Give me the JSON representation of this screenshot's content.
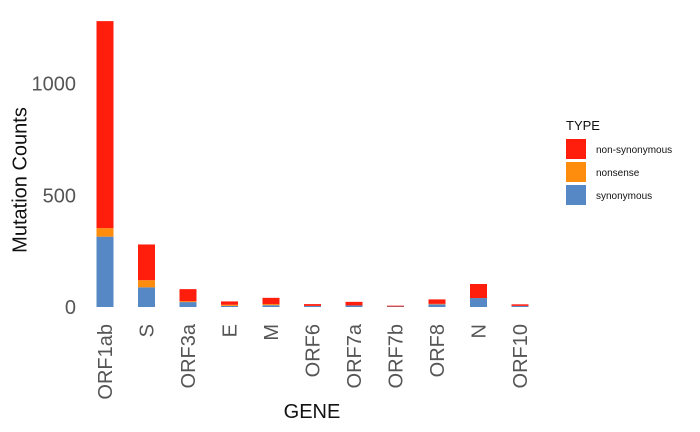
{
  "chart_data": {
    "type": "bar",
    "stacked": true,
    "title": "",
    "xlabel": "GENE",
    "ylabel": "Mutation Counts",
    "ylim": [
      0,
      1285
    ],
    "yticks": [
      0,
      500,
      1000
    ],
    "grid": false,
    "legend_title": "TYPE",
    "legend_position": "right",
    "categories": [
      "ORF1ab",
      "S",
      "ORF3a",
      "E",
      "M",
      "ORF6",
      "ORF7a",
      "ORF7b",
      "ORF8",
      "N",
      "ORF10"
    ],
    "series": [
      {
        "name": "synonymous",
        "color": "#5588c5",
        "values": [
          315,
          88,
          22,
          5,
          8,
          5,
          7,
          2,
          12,
          40,
          5
        ]
      },
      {
        "name": "nonsense",
        "color": "#ff8d0d",
        "values": [
          38,
          32,
          4,
          5,
          5,
          0,
          0,
          0,
          2,
          0,
          0
        ]
      },
      {
        "name": "non-synonymous",
        "color": "#ff1d0c",
        "values": [
          927,
          160,
          54,
          15,
          28,
          8,
          16,
          4,
          20,
          63,
          7
        ]
      }
    ],
    "legend_order": [
      "non-synonymous",
      "nonsense",
      "synonymous"
    ]
  }
}
